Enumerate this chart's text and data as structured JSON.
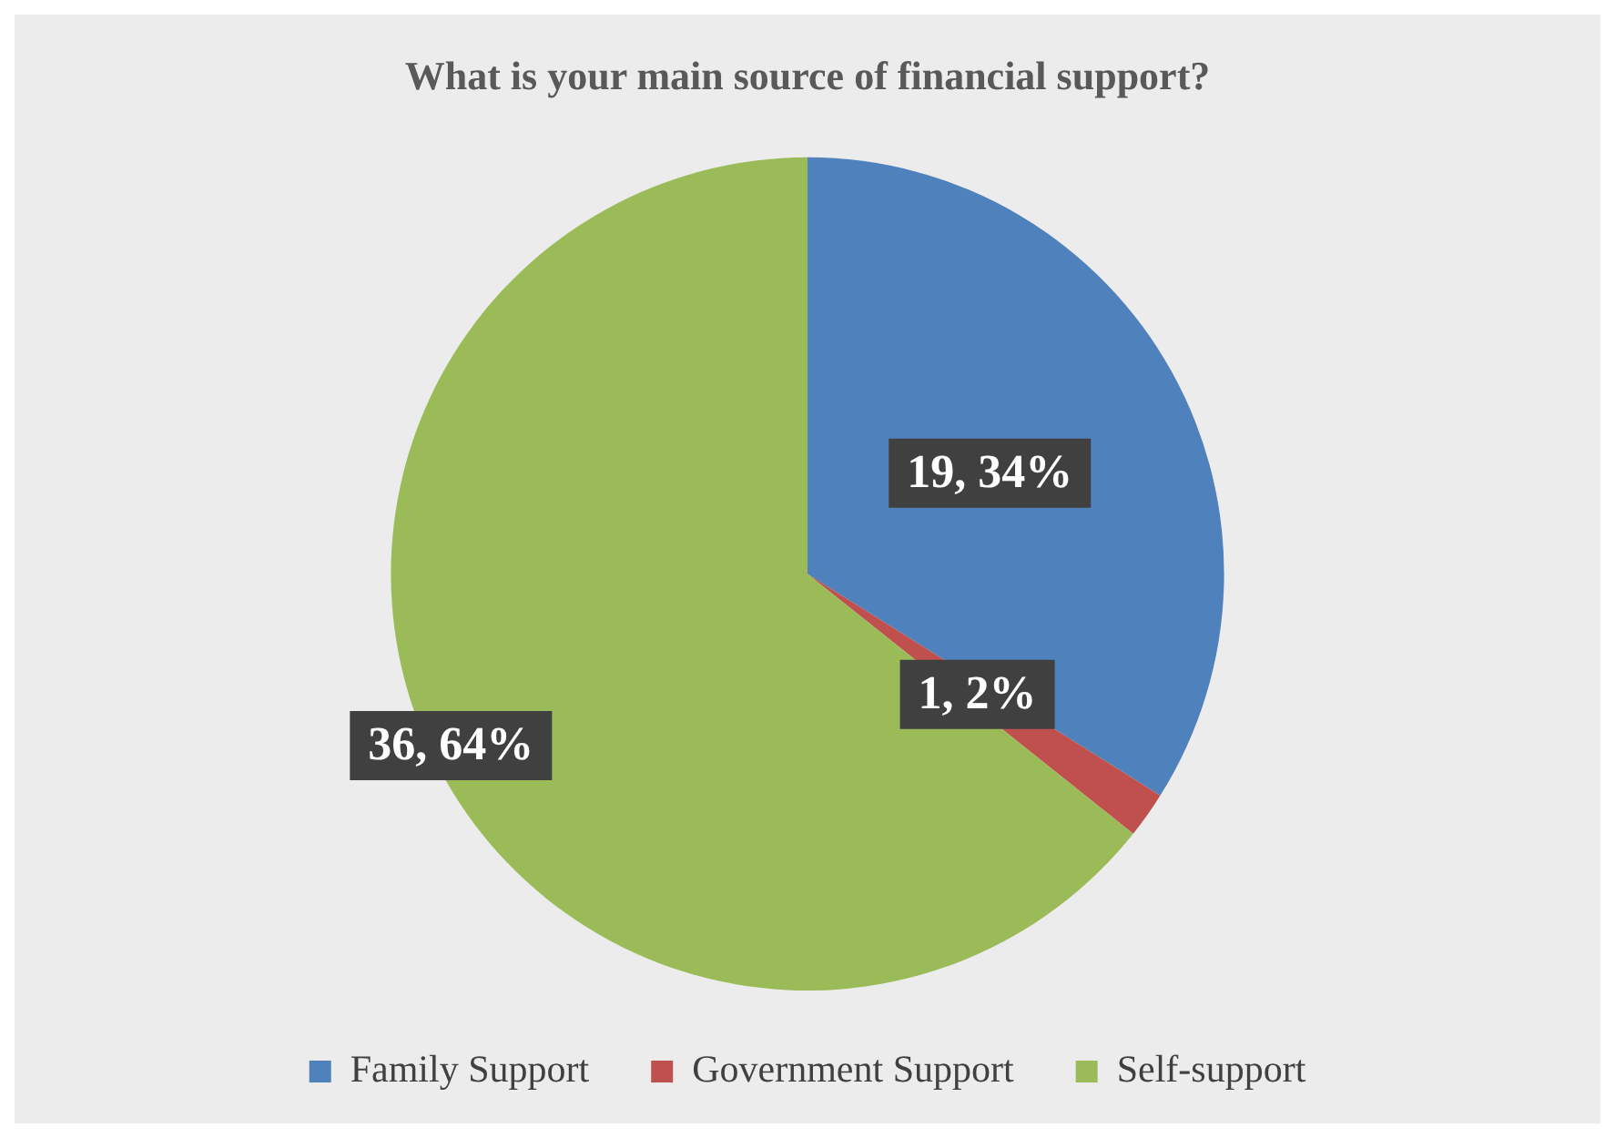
{
  "chart_data": {
    "type": "pie",
    "title": "What is your main source of financial support?",
    "categories": [
      "Family Support",
      "Government Support",
      "Self-support"
    ],
    "values": [
      19,
      1,
      36
    ],
    "colors": [
      "#4f81bd",
      "#c0504d",
      "#9bbb59"
    ],
    "value_labels": [
      "19, 34%",
      "1, 2%",
      "36, 64%"
    ],
    "legend": "bottom"
  }
}
